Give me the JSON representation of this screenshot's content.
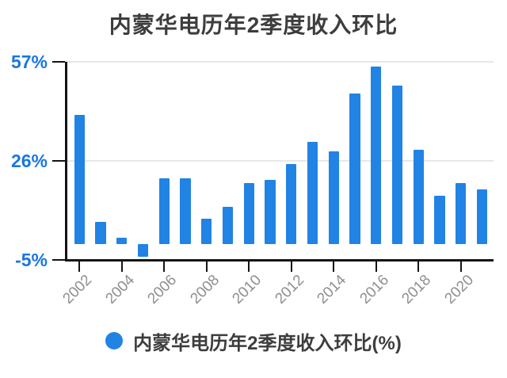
{
  "chart_data": {
    "type": "bar",
    "title": "内蒙华电历年2季度收入环比",
    "series_name": "内蒙华电历年2季度收入环比(%)",
    "x": [
      2002,
      2003,
      2004,
      2005,
      2006,
      2007,
      2008,
      2009,
      2010,
      2011,
      2012,
      2013,
      2014,
      2015,
      2016,
      2017,
      2018,
      2019,
      2020,
      2021
    ],
    "values": [
      40.5,
      7,
      2,
      -4,
      20.5,
      20.5,
      8,
      11.5,
      19,
      20,
      25,
      32,
      29,
      47,
      55.5,
      49.5,
      29.5,
      15,
      19,
      17
    ],
    "unit": "%",
    "ylim": [
      -5,
      57
    ],
    "y_axis_ticks": [
      {
        "label": "57%",
        "value": 57
      },
      {
        "label": "26%",
        "value": 26
      },
      {
        "label": "-5%",
        "value": -5
      }
    ],
    "gridline_values": [
      57,
      26
    ],
    "x_axis_tick_labels": [
      "2002",
      "2004",
      "2006",
      "2008",
      "2010",
      "2012",
      "2014",
      "2016",
      "2018",
      "2020"
    ],
    "grid": "horizontal",
    "legend_position": "bottom"
  },
  "colors": {
    "bar": "#2183e3",
    "y_label": "#1b76e0",
    "title_text": "#3d3d3d",
    "legend_text": "#3d3d3d",
    "x_label": "#8f8f8f",
    "grid": "#e7e7e7",
    "axis": "#141414",
    "background": "#ffffff"
  }
}
